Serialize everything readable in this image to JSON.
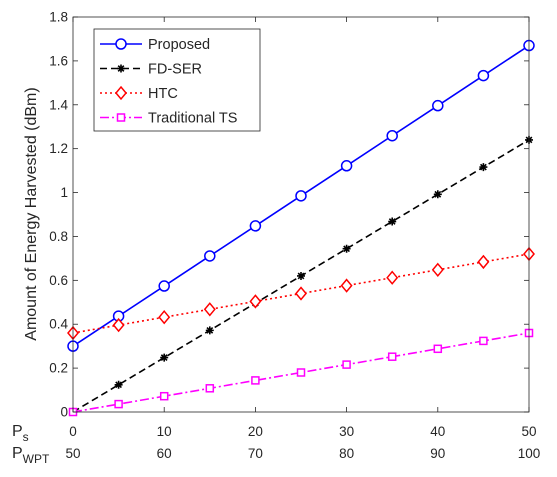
{
  "chart_data": {
    "type": "line",
    "title": "",
    "xlabel": "",
    "ylabel": "Amount of Energy Harvested (dBm)",
    "x": [
      0,
      5,
      10,
      15,
      20,
      25,
      30,
      35,
      40,
      45,
      50
    ],
    "xlim": [
      0,
      50
    ],
    "ylim": [
      0,
      1.8
    ],
    "x_ticks": [
      0,
      10,
      20,
      30,
      40,
      50
    ],
    "y_ticks": [
      0,
      0.2,
      0.4,
      0.6,
      0.8,
      1,
      1.2,
      1.4,
      1.6,
      1.8
    ],
    "x_axis_rows": [
      {
        "label_main": "P",
        "label_sub": "s",
        "ticks": [
          "0",
          "10",
          "20",
          "30",
          "40",
          "50"
        ]
      },
      {
        "label_main": "P",
        "label_sub": "WPT",
        "ticks": [
          "50",
          "60",
          "70",
          "80",
          "90",
          "100"
        ]
      }
    ],
    "grid": false,
    "legend_position": "top-left",
    "series": [
      {
        "name": "Proposed",
        "color": "#0000ff",
        "marker": "circle",
        "line": "solid",
        "values": [
          0.3,
          0.437,
          0.574,
          0.711,
          0.848,
          0.985,
          1.122,
          1.259,
          1.396,
          1.533,
          1.67
        ]
      },
      {
        "name": "FD-SER",
        "color": "#000000",
        "marker": "star",
        "line": "dashed",
        "values": [
          0.0,
          0.124,
          0.248,
          0.372,
          0.496,
          0.62,
          0.744,
          0.868,
          0.992,
          1.116,
          1.24
        ]
      },
      {
        "name": "HTC",
        "color": "#ff0000",
        "marker": "diamond",
        "line": "dotted",
        "values": [
          0.36,
          0.396,
          0.432,
          0.468,
          0.504,
          0.54,
          0.576,
          0.612,
          0.648,
          0.684,
          0.72
        ]
      },
      {
        "name": "Traditional TS",
        "color": "#ff00ff",
        "marker": "square",
        "line": "dashdot",
        "values": [
          0.0,
          0.036,
          0.072,
          0.108,
          0.144,
          0.18,
          0.216,
          0.252,
          0.288,
          0.324,
          0.36
        ]
      }
    ]
  }
}
